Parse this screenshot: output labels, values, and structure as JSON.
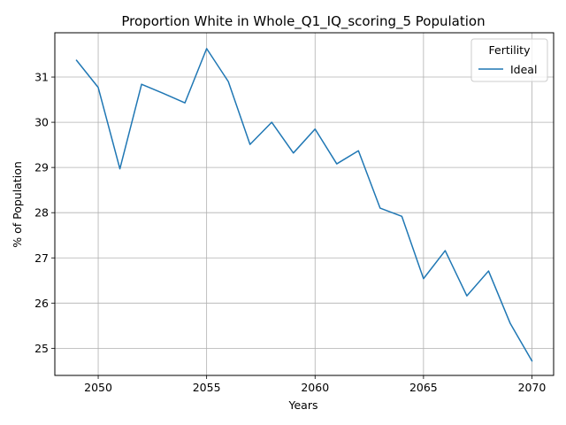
{
  "chart_data": {
    "type": "line",
    "title": "Proportion White in Whole_Q1_IQ_scoring_5 Population",
    "xlabel": "Years",
    "ylabel": "% of Population",
    "xlim": [
      2048,
      2071
    ],
    "ylim": [
      24.4,
      31.98
    ],
    "grid": true,
    "legend": {
      "title": "Fertility",
      "placement": "top-right"
    },
    "x_ticks": [
      "2050",
      "2055",
      "2060",
      "2065",
      "2070"
    ],
    "y_ticks": [
      "25",
      "26",
      "27",
      "28",
      "29",
      "30",
      "31"
    ],
    "series": [
      {
        "name": "Ideal",
        "color": "#1f77b4",
        "x": [
          2049,
          2050,
          2051,
          2052,
          2053,
          2054,
          2055,
          2056,
          2057,
          2058,
          2059,
          2060,
          2061,
          2062,
          2063,
          2064,
          2065,
          2066,
          2067,
          2068,
          2069,
          2070
        ],
        "y": [
          31.37,
          30.77,
          28.97,
          30.84,
          30.64,
          30.43,
          31.63,
          30.9,
          29.51,
          30.0,
          29.32,
          29.85,
          29.08,
          29.37,
          28.1,
          27.92,
          26.54,
          27.16,
          26.16,
          26.71,
          25.55,
          24.72
        ]
      }
    ]
  }
}
